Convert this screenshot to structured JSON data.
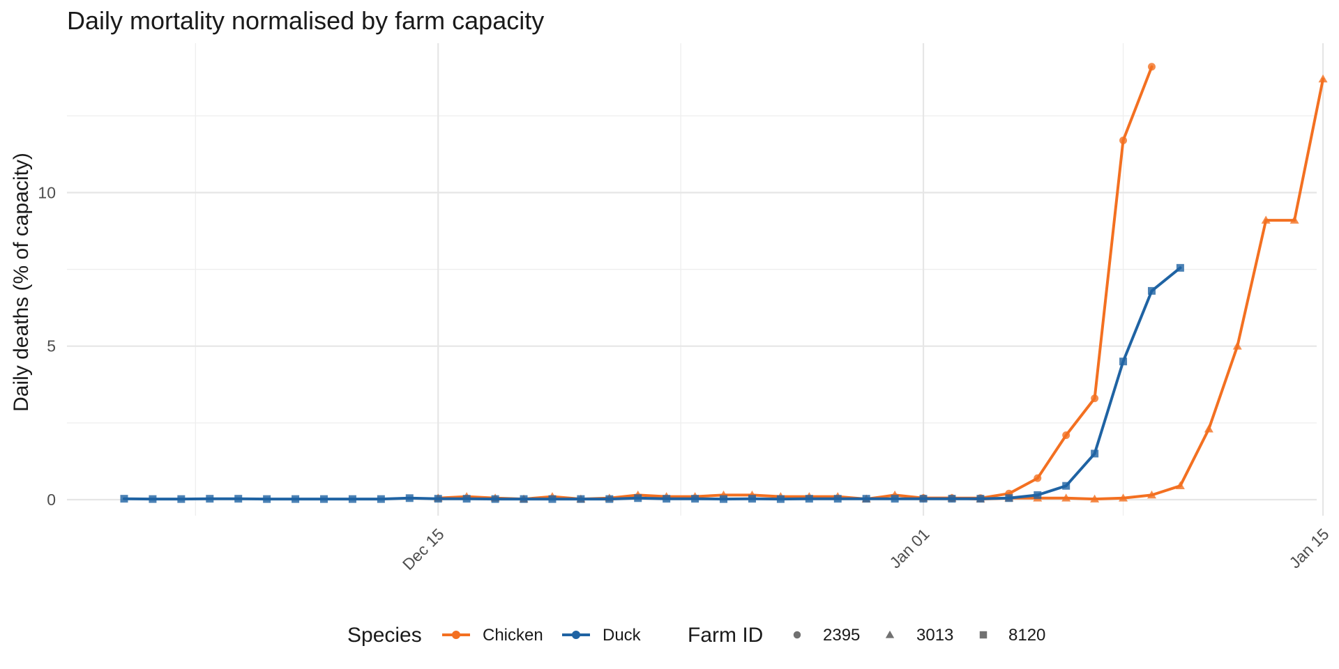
{
  "chart_data": {
    "type": "line",
    "title": "Daily mortality normalised by farm capacity",
    "xlabel": "",
    "ylabel": "Daily deaths (% of capacity)",
    "x_start": "2023-12-04",
    "xlim_days": [
      0,
      42
    ],
    "x_ticks": [
      {
        "day": 11,
        "label": "Dec 15"
      },
      {
        "day": 28,
        "label": "Jan 01"
      },
      {
        "day": 42,
        "label": "Jan 15"
      }
    ],
    "x_minor_days": [
      2.5,
      19.5,
      35
    ],
    "ylim": [
      -0.5,
      14.8
    ],
    "y_ticks": [
      0,
      5,
      10
    ],
    "y_minor": [
      2.5,
      7.5,
      12.5
    ],
    "colors": {
      "Chicken": "#F37021",
      "Duck": "#1F63A3"
    },
    "legend": {
      "position": "bottom",
      "species_title": "Species",
      "species": [
        "Chicken",
        "Duck"
      ],
      "farm_title": "Farm ID",
      "farms": [
        {
          "id": "2395",
          "shape": "circle"
        },
        {
          "id": "3013",
          "shape": "triangle"
        },
        {
          "id": "8120",
          "shape": "square"
        }
      ]
    },
    "series": [
      {
        "name": "Chicken - 2395",
        "species": "Chicken",
        "farm": "2395",
        "shape": "circle",
        "x": [
          28,
          29,
          30,
          31,
          32,
          33,
          34,
          35,
          36
        ],
        "y": [
          0.05,
          0.05,
          0.05,
          0.2,
          0.7,
          2.1,
          3.3,
          11.7,
          14.1
        ]
      },
      {
        "name": "Chicken - 3013",
        "species": "Chicken",
        "farm": "3013",
        "shape": "triangle",
        "x": [
          11,
          12,
          13,
          14,
          15,
          16,
          17,
          18,
          19,
          20,
          21,
          22,
          23,
          24,
          25,
          26,
          27,
          28,
          29,
          30,
          31,
          32,
          33,
          34,
          35,
          36,
          37,
          38,
          39,
          40,
          41,
          42
        ],
        "y": [
          0.05,
          0.1,
          0.05,
          0.02,
          0.1,
          0.02,
          0.05,
          0.15,
          0.1,
          0.1,
          0.15,
          0.15,
          0.1,
          0.1,
          0.1,
          0.02,
          0.15,
          0.05,
          0.05,
          0.02,
          0.05,
          0.05,
          0.05,
          0.02,
          0.05,
          0.15,
          0.45,
          2.3,
          5.0,
          9.1,
          9.1,
          13.7
        ]
      },
      {
        "name": "Duck - 8120",
        "species": "Duck",
        "farm": "8120",
        "shape": "square",
        "x": [
          0,
          1,
          2,
          3,
          4,
          5,
          6,
          7,
          8,
          9,
          10,
          11,
          12,
          13,
          14,
          15,
          16,
          17,
          18,
          19,
          20,
          21,
          22,
          23,
          24,
          25,
          26,
          27,
          28,
          29,
          30,
          31,
          32,
          33,
          34,
          35,
          36,
          37
        ],
        "y": [
          0.03,
          0.02,
          0.02,
          0.03,
          0.03,
          0.02,
          0.02,
          0.02,
          0.02,
          0.02,
          0.05,
          0.03,
          0.03,
          0.02,
          0.02,
          0.02,
          0.02,
          0.02,
          0.05,
          0.03,
          0.03,
          0.02,
          0.03,
          0.02,
          0.03,
          0.03,
          0.03,
          0.03,
          0.03,
          0.03,
          0.03,
          0.05,
          0.15,
          0.45,
          1.5,
          4.5,
          6.8,
          7.55
        ]
      }
    ]
  }
}
